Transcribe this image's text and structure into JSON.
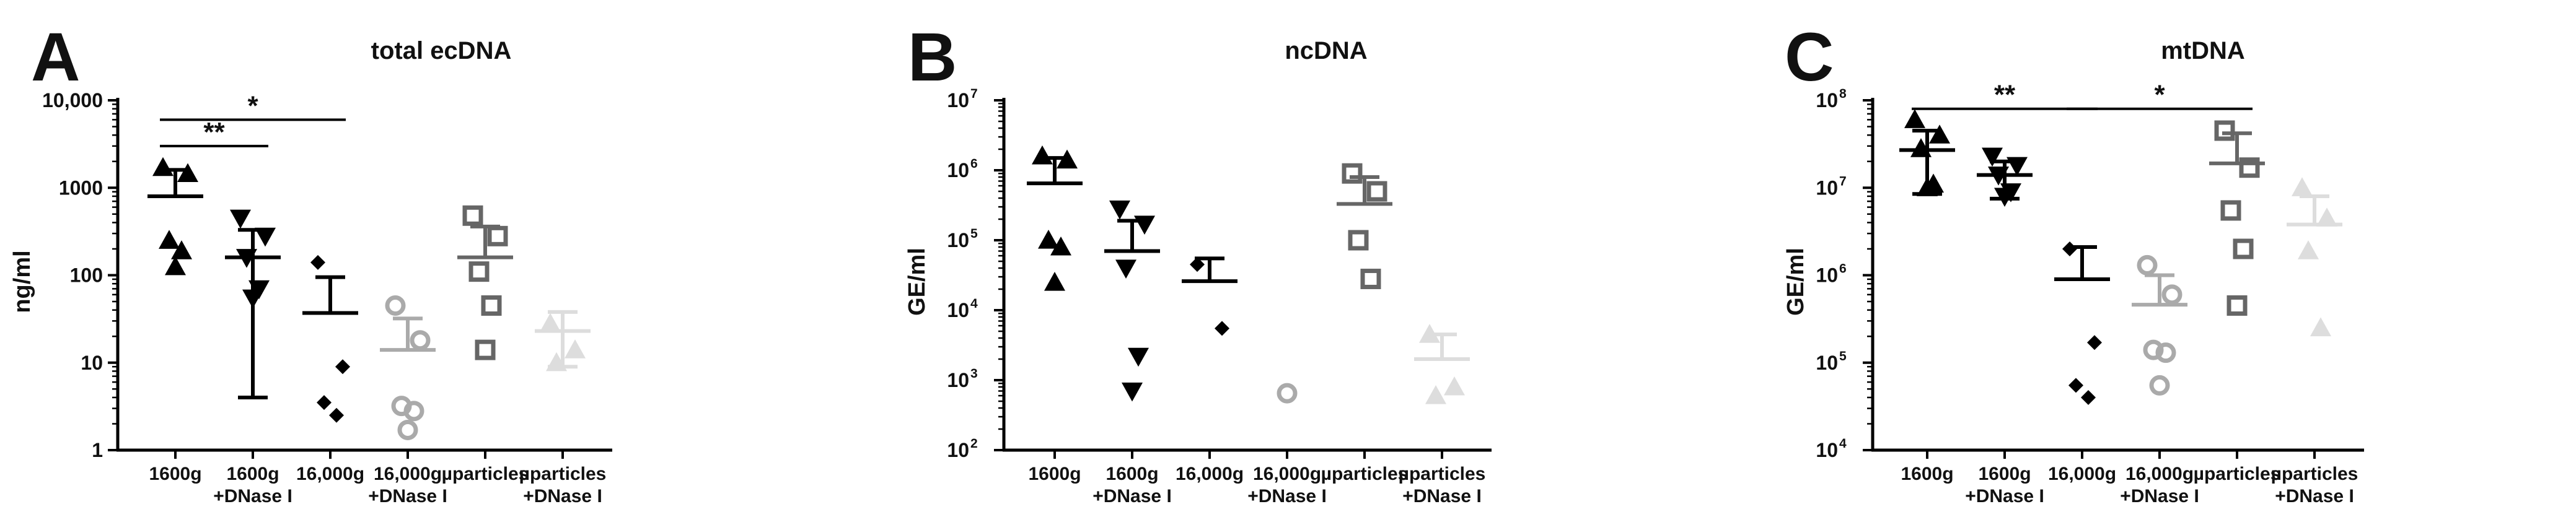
{
  "chart_data": [
    {
      "type": "scatter",
      "panel": "A",
      "title": "total ecDNA",
      "ylabel": "ng/ml",
      "yscale": "log",
      "ylim": [
        1,
        10000
      ],
      "ytick_values": [
        1,
        10,
        100,
        1000,
        10000
      ],
      "ytick_labels": [
        "1",
        "10",
        "100",
        "1000",
        "10,000"
      ],
      "categories": [
        [
          "1600g"
        ],
        [
          "1600g",
          "+DNase I"
        ],
        [
          "16,000g"
        ],
        [
          "16,000g",
          "+DNase I"
        ],
        [
          "µparticles"
        ],
        [
          "µparticles",
          "+DNase I"
        ]
      ],
      "series": [
        {
          "name": "1600g",
          "marker": "triangle-up",
          "color": "#000000",
          "values": [
            1700,
            1450,
            250,
            190,
            125
          ],
          "mean": 800,
          "sd_upper": 1600,
          "sd_lower": 800
        },
        {
          "name": "1600g +DNase I",
          "marker": "triangle-down",
          "color": "#000000",
          "values": [
            450,
            280,
            160,
            70,
            55
          ],
          "mean": 160,
          "sd_upper": 330,
          "sd_lower": 4
        },
        {
          "name": "16,000g",
          "marker": "diamond",
          "color": "#000000",
          "values": [
            140,
            9,
            3.5,
            2.5
          ],
          "mean": 37,
          "sd_upper": 95,
          "sd_lower": 37
        },
        {
          "name": "16,000g +DNase I",
          "marker": "circle-open",
          "color": "#aaaaaa",
          "values": [
            45,
            18,
            3.2,
            2.8,
            1.7
          ],
          "mean": 14,
          "sd_upper": 32,
          "sd_lower": 14
        },
        {
          "name": "µparticles",
          "marker": "square-open",
          "color": "#666666",
          "values": [
            480,
            280,
            110,
            45,
            14
          ],
          "mean": 160,
          "sd_upper": 360,
          "sd_lower": 160
        },
        {
          "name": "µparticles +DNase I",
          "marker": "triangle-up",
          "color": "#dddddd",
          "values": [
            28,
            14,
            10
          ],
          "mean": 23,
          "sd_upper": 38,
          "sd_lower": 9
        }
      ],
      "significance": [
        {
          "from": 0,
          "to": 1,
          "y": 3000,
          "label": "**"
        },
        {
          "from": 0,
          "to": 2,
          "y": 6000,
          "label": "*"
        }
      ]
    },
    {
      "type": "scatter",
      "panel": "B",
      "title": "ncDNA",
      "ylabel": "GE/ml",
      "yscale": "log",
      "ylim": [
        100,
        10000000
      ],
      "ytick_values": [
        100,
        1000,
        10000,
        100000,
        1000000,
        10000000
      ],
      "ytick_labels": [
        [
          "10",
          "2"
        ],
        [
          "10",
          "3"
        ],
        [
          "10",
          "4"
        ],
        [
          "10",
          "5"
        ],
        [
          "10",
          "6"
        ],
        [
          "10",
          "7"
        ]
      ],
      "categories": [
        [
          "1600g"
        ],
        [
          "1600g",
          "+DNase I"
        ],
        [
          "16,000g"
        ],
        [
          "16,000g",
          "+DNase I"
        ],
        [
          "µparticles"
        ],
        [
          "µparticles",
          "+DNase I"
        ]
      ],
      "series": [
        {
          "name": "1600g",
          "marker": "triangle-up",
          "color": "#000000",
          "values": [
            1600000,
            1400000,
            100000,
            80000,
            25000
          ],
          "mean": 650000,
          "sd_upper": 1500000,
          "sd_lower": 650000
        },
        {
          "name": "1600g +DNase I",
          "marker": "triangle-down",
          "color": "#000000",
          "values": [
            280000,
            170000,
            40000,
            2200,
            700
          ],
          "mean": 70000,
          "sd_upper": 190000,
          "sd_lower": 70000
        },
        {
          "name": "16,000g",
          "marker": "diamond",
          "color": "#000000",
          "values": [
            45000,
            5500
          ],
          "mean": 26000,
          "sd_upper": 55000,
          "sd_lower": 26000
        },
        {
          "name": "16,000g +DNase I",
          "marker": "circle-open",
          "color": "#aaaaaa",
          "values": [
            650
          ],
          "mean": null,
          "sd_upper": null,
          "sd_lower": null
        },
        {
          "name": "µparticles",
          "marker": "square-open",
          "color": "#666666",
          "values": [
            900000,
            500000,
            100000,
            28000
          ],
          "mean": 330000,
          "sd_upper": 800000,
          "sd_lower": 330000
        },
        {
          "name": "µparticles +DNase I",
          "marker": "triangle-up",
          "color": "#dddddd",
          "values": [
            4500,
            800,
            600
          ],
          "mean": 2000,
          "sd_upper": 4500,
          "sd_lower": 2000
        }
      ],
      "significance": []
    },
    {
      "type": "scatter",
      "panel": "C",
      "title": "mtDNA",
      "ylabel": "GE/ml",
      "yscale": "log",
      "ylim": [
        10000,
        100000000
      ],
      "ytick_values": [
        10000,
        100000,
        1000000,
        10000000,
        100000000
      ],
      "ytick_labels": [
        [
          "10",
          "4"
        ],
        [
          "10",
          "5"
        ],
        [
          "10",
          "6"
        ],
        [
          "10",
          "7"
        ],
        [
          "10",
          "8"
        ]
      ],
      "categories": [
        [
          "1600g"
        ],
        [
          "1600g",
          "+DNase I"
        ],
        [
          "16,000g"
        ],
        [
          "16,000g",
          "+DNase I"
        ],
        [
          "µparticles"
        ],
        [
          "µparticles",
          "+DNase I"
        ]
      ],
      "series": [
        {
          "name": "1600g",
          "marker": "triangle-up",
          "color": "#000000",
          "values": [
            60000000,
            40000000,
            28000000,
            11000000,
            10000000
          ],
          "mean": 27000000,
          "sd_upper": 45000000,
          "sd_lower": 8500000
        },
        {
          "name": "1600g +DNase I",
          "marker": "triangle-down",
          "color": "#000000",
          "values": [
            23000000,
            18000000,
            14000000,
            9000000,
            8000000
          ],
          "mean": 14000000,
          "sd_upper": 20000000,
          "sd_lower": 7500000
        },
        {
          "name": "16,000g",
          "marker": "diamond",
          "color": "#000000",
          "values": [
            2000000,
            170000,
            55000,
            40000
          ],
          "mean": 900000,
          "sd_upper": 2100000,
          "sd_lower": 900000
        },
        {
          "name": "16,000g +DNase I",
          "marker": "circle-open",
          "color": "#aaaaaa",
          "values": [
            1300000,
            600000,
            140000,
            130000,
            55000
          ],
          "mean": 460000,
          "sd_upper": 1000000,
          "sd_lower": 460000
        },
        {
          "name": "µparticles",
          "marker": "square-open",
          "color": "#666666",
          "values": [
            45000000,
            17000000,
            5500000,
            2000000,
            450000
          ],
          "mean": 19000000,
          "sd_upper": 42000000,
          "sd_lower": 19000000
        },
        {
          "name": "µparticles +DNase I",
          "marker": "triangle-up",
          "color": "#dddddd",
          "values": [
            10000000,
            4500000,
            1900000,
            250000
          ],
          "mean": 3800000,
          "sd_upper": 8000000,
          "sd_lower": 3800000
        }
      ],
      "significance": [
        {
          "from": 0,
          "to": 2,
          "y": 80000000,
          "label": "**"
        },
        {
          "from": 2,
          "to": 4,
          "y": 80000000,
          "label": "*"
        }
      ]
    }
  ]
}
